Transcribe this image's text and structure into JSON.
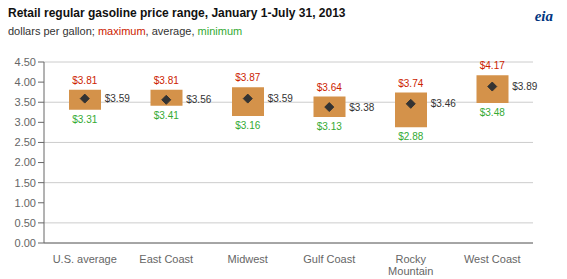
{
  "chart_data": {
    "type": "bar",
    "title": "Retail regular gasoline price range, January 1-July 31, 2013",
    "subtitle": "dollars per gallon;",
    "annotations": [
      "eia"
    ],
    "categories": [
      "U.S. average",
      "East Coast",
      "Midwest",
      "Gulf Coast",
      "Rocky\nMountain",
      "West Coast"
    ],
    "color": "#d4924a",
    "series": [
      {
        "name": "maximum",
        "type": "range_top",
        "color": "#cc2200",
        "values": [
          3.81,
          3.81,
          3.87,
          3.64,
          3.74,
          4.17
        ],
        "value_labels": [
          "$3.81",
          "$3.81",
          "$3.87",
          "$3.64",
          "$3.74",
          "$4.17"
        ]
      },
      {
        "name": "average",
        "type": "scatter",
        "marker": "diamond",
        "color": "#333333",
        "values": [
          3.59,
          3.56,
          3.59,
          3.38,
          3.46,
          3.89
        ],
        "value_labels": [
          "$3.59",
          "$3.56",
          "$3.59",
          "$3.38",
          "$3.46",
          "$3.89"
        ]
      },
      {
        "name": "minimum",
        "type": "range_bottom",
        "color": "#33aa33",
        "values": [
          3.31,
          3.41,
          3.16,
          3.13,
          2.88,
          3.48
        ],
        "value_labels": [
          "$3.31",
          "$3.41",
          "$3.16",
          "$3.13",
          "$2.88",
          "$3.48"
        ]
      }
    ],
    "ylim": [
      0,
      4.5
    ],
    "yticks": [
      {
        "value": 0.0,
        "label": "0.00"
      },
      {
        "value": 0.5,
        "label": "0.50"
      },
      {
        "value": 1.0,
        "label": "1.00"
      },
      {
        "value": 1.5,
        "label": "1.50"
      },
      {
        "value": 2.0,
        "label": "2.00"
      },
      {
        "value": 2.5,
        "label": "2.50"
      },
      {
        "value": 3.0,
        "label": "3.00"
      },
      {
        "value": 3.5,
        "label": "3.50"
      },
      {
        "value": 4.0,
        "label": "4.00"
      },
      {
        "value": 4.5,
        "label": "4.50"
      }
    ],
    "grid": true,
    "data_labels": true
  }
}
